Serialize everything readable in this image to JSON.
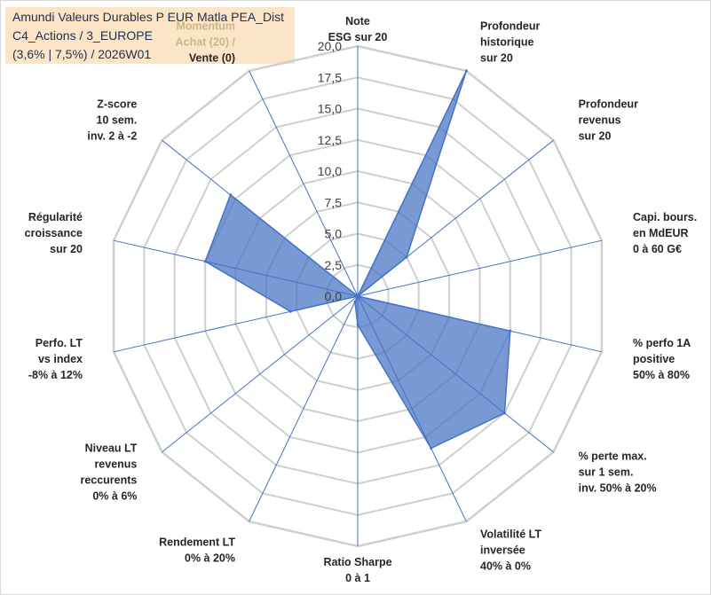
{
  "chart_data": {
    "type": "radar",
    "title_lines": [
      "Amundi Valeurs Durables P EUR Matla PEA_Dist",
      "C4_Actions / 3_EUROPE",
      "(3,6% | 7,5%) / 2026W01"
    ],
    "ylim": [
      0,
      20
    ],
    "ticks": [
      "0,0",
      "2,5",
      "5,0",
      "7,5",
      "10,0",
      "12,5",
      "15,0",
      "17,5",
      "20,0"
    ],
    "tick_values": [
      0,
      2.5,
      5,
      7.5,
      10,
      12.5,
      15,
      17.5,
      20
    ],
    "grid": true,
    "axes": [
      {
        "lines": [
          "Note",
          "ESG sur 20"
        ]
      },
      {
        "lines": [
          "Profondeur",
          "historique",
          "sur 20"
        ]
      },
      {
        "lines": [
          "Profondeur",
          "revenus",
          "sur 20"
        ]
      },
      {
        "lines": [
          "Capi. bours.",
          "en MdEUR",
          "0 à 60 G€"
        ]
      },
      {
        "lines": [
          "% perfo 1A",
          "positive",
          "50% à 80%"
        ]
      },
      {
        "lines": [
          "% perte max.",
          "sur 1 sem.",
          "inv. 50% à 20%"
        ]
      },
      {
        "lines": [
          "Volatilité LT",
          "inversée",
          "40% à 0%"
        ]
      },
      {
        "lines": [
          "Ratio Sharpe",
          "0 à 1"
        ]
      },
      {
        "lines": [
          "Rendement LT",
          "0% à 20%"
        ]
      },
      {
        "lines": [
          "Niveau LT",
          "revenus",
          "reccurents",
          "0% à 6%"
        ]
      },
      {
        "lines": [
          "Perfo. LT",
          "vs index",
          "-8% à 12%"
        ]
      },
      {
        "lines": [
          "Régularité",
          "croissance",
          "sur 20"
        ]
      },
      {
        "lines": [
          "Z-score",
          "10 sem.",
          "inv. 2 à -2"
        ]
      },
      {
        "lines": [
          "Momentum",
          "Achat (20) /",
          "Vente (0)"
        ]
      }
    ],
    "series": [
      {
        "name": "Amundi Valeurs Durables P EUR Matla PEA_Dist",
        "color": "#4472c4",
        "values": [
          0,
          20,
          5,
          0,
          12.5,
          15,
          13.5,
          2.3,
          0.5,
          0,
          5.5,
          12.5,
          13,
          0
        ]
      }
    ]
  }
}
